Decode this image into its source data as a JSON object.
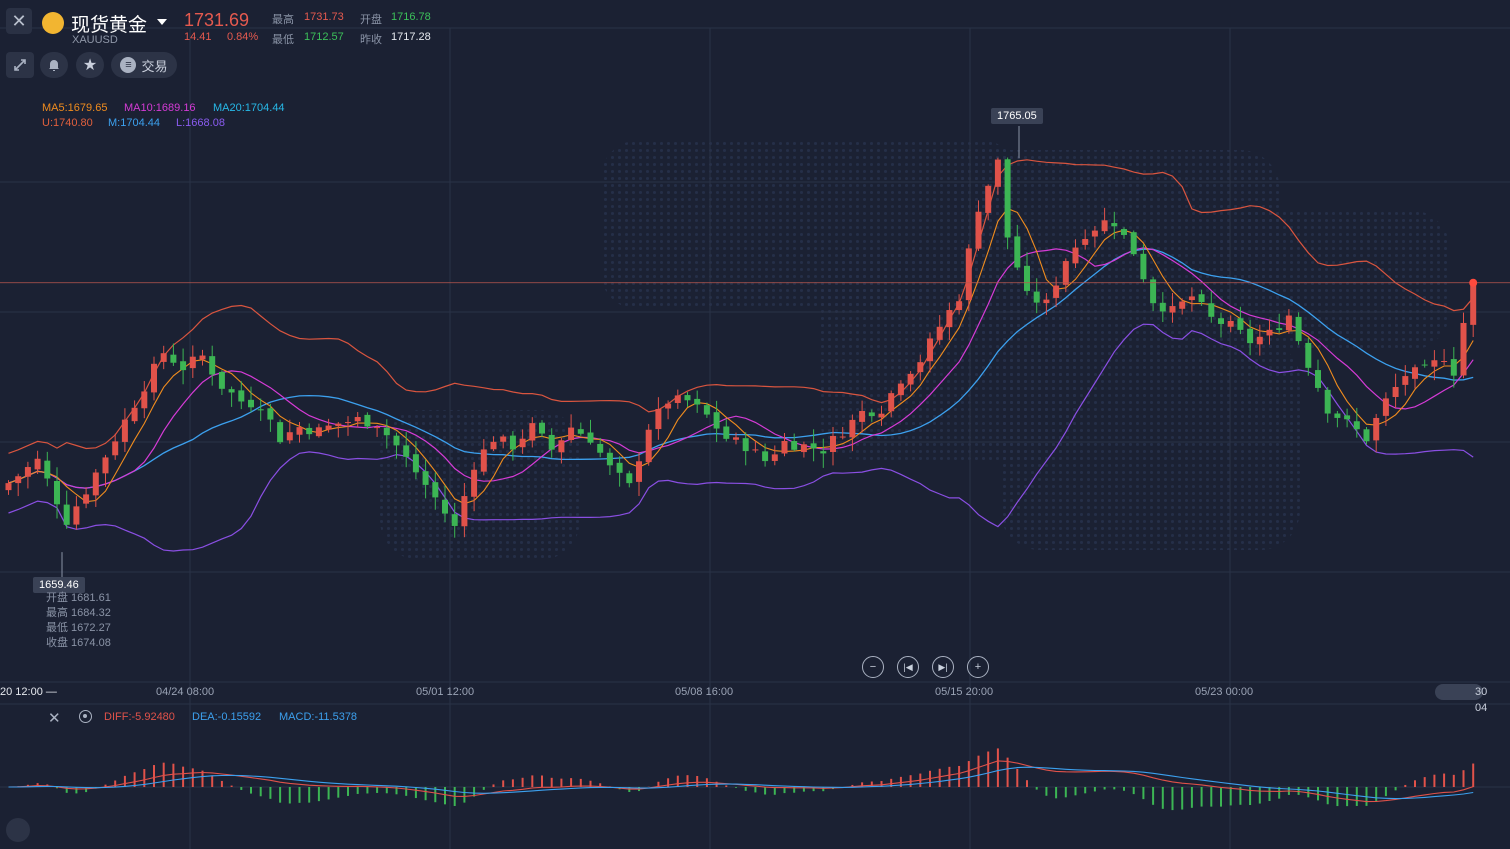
{
  "header": {
    "title": "现货黄金",
    "symbol": "XAUUSD",
    "price": "1731.69",
    "change": "14.41",
    "change_pct": "0.84%",
    "high_label": "最高",
    "high": "1731.73",
    "low_label": "最低",
    "low": "1712.57",
    "open_label": "开盘",
    "open": "1716.78",
    "prev_close_label": "昨收",
    "prev_close": "1717.28"
  },
  "toolbar": {
    "trade_label": "交易"
  },
  "indicators": {
    "ma5": "MA5:1679.65",
    "ma10": "MA10:1689.16",
    "ma20": "MA20:1704.44",
    "boll_u": "U:1740.80",
    "boll_m": "M:1704.44",
    "boll_l": "L:1668.08"
  },
  "markers": {
    "max_label": "1765.05",
    "min_label": "1659.46"
  },
  "tooltip": {
    "open": "开盘 1681.61",
    "high": "最高 1684.32",
    "low": "最低 1672.27",
    "close": "收盘 1674.08"
  },
  "time_axis": {
    "left_stub": "20 12:00",
    "labels": [
      "04/24 08:00",
      "05/01 12:00",
      "05/08 16:00",
      "05/15 20:00",
      "05/23 00:00"
    ],
    "right_stub": "30 04"
  },
  "macd": {
    "diff": "DIFF:-5.92480",
    "dea": "DEA:-0.15592",
    "macd": "MACD:-11.5378"
  },
  "colors": {
    "background": "#1b2133",
    "up": "#e0524a",
    "down": "#3cb554",
    "ma5": "#f08c1e",
    "ma10": "#d53bd6",
    "ma20": "#3ca0ee",
    "boll_u": "#d9553f",
    "boll_m": "#3ca0ee",
    "boll_l": "#8a4fe3"
  },
  "chart_data": [
    {
      "type": "candlestick",
      "name": "现货黄金 XAUUSD",
      "x_ticks": [
        "04/24 08:00",
        "05/01 12:00",
        "05/08 16:00",
        "05/15 20:00",
        "05/23 00:00"
      ],
      "ylim": [
        1652,
        1778
      ],
      "close_path": [
        [
          0,
          1678
        ],
        [
          3,
          1684
        ],
        [
          6,
          1668
        ],
        [
          8,
          1676
        ],
        [
          11,
          1690
        ],
        [
          14,
          1704
        ],
        [
          16,
          1713
        ],
        [
          18,
          1709
        ],
        [
          20,
          1712
        ],
        [
          22,
          1704
        ],
        [
          24,
          1700
        ],
        [
          26,
          1699
        ],
        [
          28,
          1690
        ],
        [
          30,
          1693
        ],
        [
          32,
          1692
        ],
        [
          34,
          1694
        ],
        [
          36,
          1695
        ],
        [
          38,
          1694
        ],
        [
          40,
          1688
        ],
        [
          42,
          1681
        ],
        [
          44,
          1674
        ],
        [
          46,
          1666
        ],
        [
          48,
          1683
        ],
        [
          50,
          1690
        ],
        [
          52,
          1688
        ],
        [
          54,
          1693
        ],
        [
          56,
          1687
        ],
        [
          58,
          1693
        ],
        [
          60,
          1690
        ],
        [
          62,
          1682
        ],
        [
          64,
          1677
        ],
        [
          66,
          1693
        ],
        [
          68,
          1700
        ],
        [
          70,
          1700
        ],
        [
          72,
          1696
        ],
        [
          74,
          1690
        ],
        [
          76,
          1688
        ],
        [
          78,
          1684
        ],
        [
          80,
          1689
        ],
        [
          82,
          1688
        ],
        [
          84,
          1687
        ],
        [
          86,
          1692
        ],
        [
          88,
          1697
        ],
        [
          90,
          1698
        ],
        [
          92,
          1706
        ],
        [
          94,
          1711
        ],
        [
          96,
          1720
        ],
        [
          98,
          1728
        ],
        [
          100,
          1752
        ],
        [
          101,
          1758
        ],
        [
          102,
          1764
        ],
        [
          103,
          1744
        ],
        [
          105,
          1728
        ],
        [
          107,
          1726
        ],
        [
          109,
          1738
        ],
        [
          111,
          1745
        ],
        [
          113,
          1748
        ],
        [
          114,
          1748
        ],
        [
          116,
          1740
        ],
        [
          118,
          1727
        ],
        [
          120,
          1724
        ],
        [
          122,
          1728
        ],
        [
          124,
          1722
        ],
        [
          126,
          1720
        ],
        [
          128,
          1716
        ],
        [
          130,
          1718
        ],
        [
          132,
          1723
        ],
        [
          134,
          1710
        ],
        [
          136,
          1698
        ],
        [
          138,
          1694
        ],
        [
          140,
          1690
        ],
        [
          142,
          1700
        ],
        [
          144,
          1707
        ],
        [
          146,
          1708
        ],
        [
          148,
          1712
        ],
        [
          149,
          1708
        ],
        [
          150,
          1721
        ],
        [
          151,
          1728
        ]
      ],
      "annotations": {
        "max": 1765.05,
        "min": 1659.46
      },
      "last_price": 1731.69,
      "series": [
        {
          "name": "MA5",
          "last": 1679.65
        },
        {
          "name": "MA10",
          "last": 1689.16
        },
        {
          "name": "MA20",
          "last": 1704.44
        },
        {
          "name": "U",
          "last": 1740.8
        },
        {
          "name": "M",
          "last": 1704.44
        },
        {
          "name": "L",
          "last": 1668.08
        }
      ]
    },
    {
      "type": "bar",
      "name": "MACD",
      "series": [
        {
          "name": "DIFF",
          "last": -5.9248
        },
        {
          "name": "DEA",
          "last": -0.15592
        },
        {
          "name": "MACD",
          "last": -11.5378
        }
      ]
    }
  ]
}
